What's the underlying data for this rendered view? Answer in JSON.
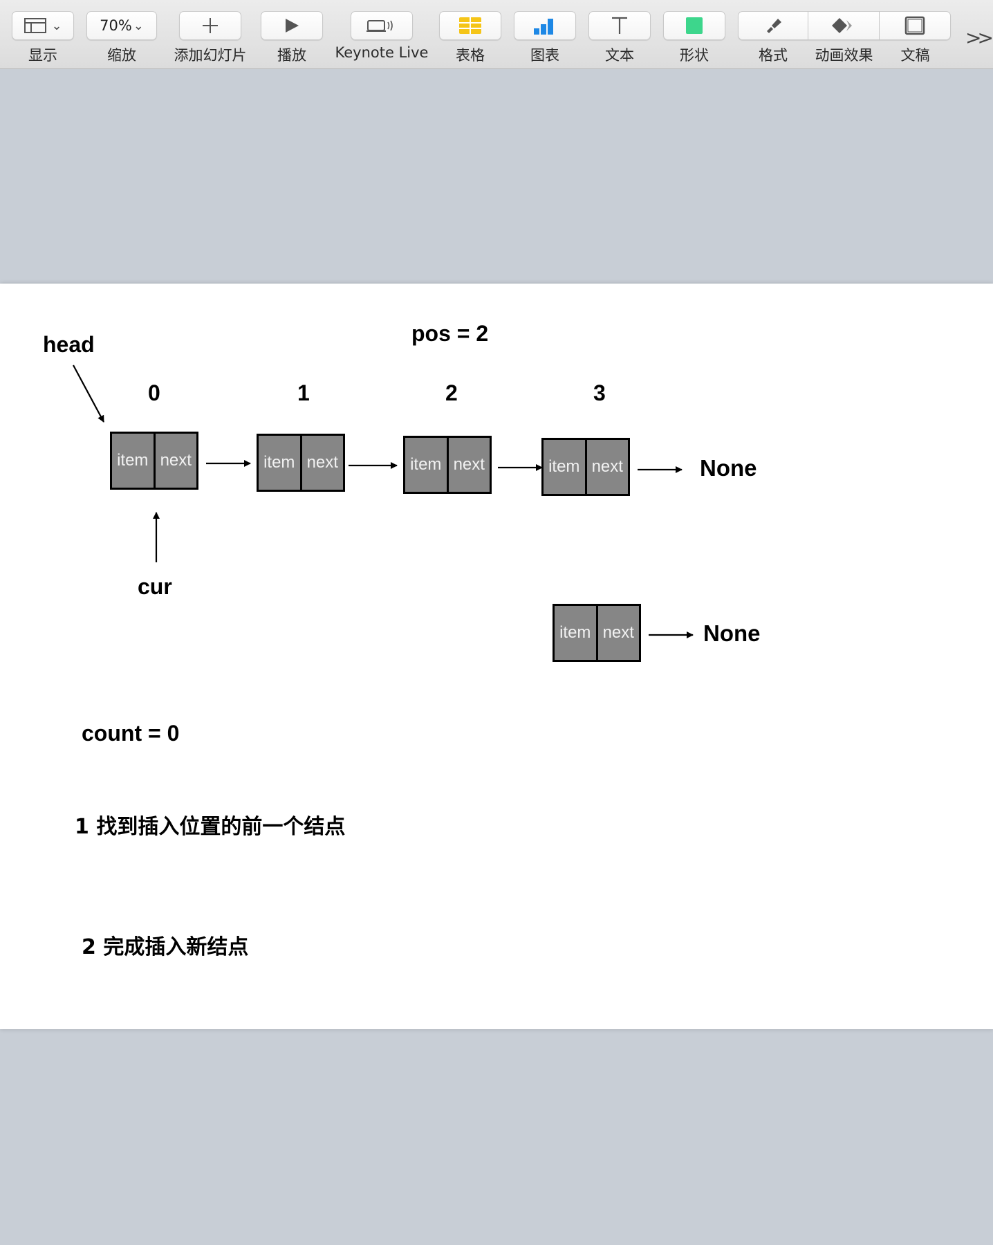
{
  "toolbar": {
    "view": {
      "label": "显示"
    },
    "zoom": {
      "label": "缩放",
      "value": "70%"
    },
    "add_slide": {
      "label": "添加幻灯片"
    },
    "play": {
      "label": "播放"
    },
    "keynote_live": {
      "label": "Keynote Live"
    },
    "table": {
      "label": "表格"
    },
    "chart": {
      "label": "图表"
    },
    "text": {
      "label": "文本"
    },
    "shape": {
      "label": "形状"
    },
    "format": {
      "label": "格式"
    },
    "animate": {
      "label": "动画效果"
    },
    "document": {
      "label": "文稿"
    },
    "colors": {
      "table_yellow": "#f5c518",
      "chart_blue": "#1e88e5",
      "shape_green": "#3dd68c"
    }
  },
  "slide": {
    "head_label": "head",
    "pos_label": "pos = 2",
    "indices": [
      "0",
      "1",
      "2",
      "3"
    ],
    "nodes": [
      {
        "item": "item",
        "next": "next"
      },
      {
        "item": "item",
        "next": "next"
      },
      {
        "item": "item",
        "next": "next"
      },
      {
        "item": "item",
        "next": "next"
      }
    ],
    "none_label": "None",
    "cur_label": "cur",
    "new_node": {
      "item": "item",
      "next": "next"
    },
    "new_none_label": "None",
    "count_label": "count = 0",
    "step1": "1 找到插入位置的前一个结点",
    "step2": "2 完成插入新结点"
  }
}
